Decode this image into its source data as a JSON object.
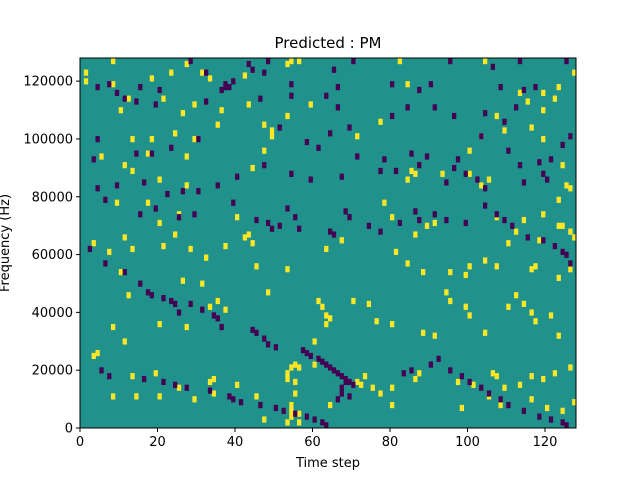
{
  "chart_data": {
    "type": "heatmap",
    "title": "Predicted : PM",
    "xlabel": "Time step",
    "ylabel": "Frequency (Hz)",
    "xlim": [
      0,
      128
    ],
    "ylim": [
      0,
      128000
    ],
    "x_ticks": [
      0,
      20,
      40,
      60,
      80,
      100,
      120
    ],
    "x_tick_labels": [
      "0",
      "20",
      "40",
      "60",
      "80",
      "100",
      "120"
    ],
    "y_ticks": [
      0,
      20000,
      40000,
      60000,
      80000,
      100000,
      120000
    ],
    "y_tick_labels": [
      "0",
      "20000",
      "40000",
      "60000",
      "80000",
      "100000",
      "120000"
    ],
    "grid": false,
    "n_time_steps": 128,
    "n_freq_bins": 128,
    "colors": {
      "background": "#21918c",
      "high": "#fde725",
      "low": "#440154"
    },
    "high_cells": [
      [
        8,
        127
      ],
      [
        1,
        123
      ],
      [
        1,
        120
      ],
      [
        8,
        119
      ],
      [
        18,
        121
      ],
      [
        23,
        123
      ],
      [
        27,
        126
      ],
      [
        31,
        123
      ],
      [
        33,
        121
      ],
      [
        42,
        122
      ],
      [
        53,
        126
      ],
      [
        54,
        127
      ],
      [
        56,
        127
      ],
      [
        82,
        127
      ],
      [
        104,
        127
      ],
      [
        127,
        123
      ],
      [
        12,
        114
      ],
      [
        21,
        114
      ],
      [
        29,
        112
      ],
      [
        43,
        112
      ],
      [
        59,
        112
      ],
      [
        84,
        119
      ],
      [
        113,
        116
      ],
      [
        115,
        113
      ],
      [
        119,
        116
      ],
      [
        123,
        118
      ],
      [
        122,
        114
      ],
      [
        10,
        110
      ],
      [
        26,
        109
      ],
      [
        36,
        110
      ],
      [
        53,
        108
      ],
      [
        107,
        108
      ],
      [
        119,
        110
      ],
      [
        24,
        102
      ],
      [
        35,
        105
      ],
      [
        47,
        105
      ],
      [
        49,
        103
      ],
      [
        49,
        101
      ],
      [
        77,
        106
      ],
      [
        109,
        103
      ],
      [
        116,
        104
      ],
      [
        13,
        100
      ],
      [
        18,
        100
      ],
      [
        29,
        100
      ],
      [
        17,
        95
      ],
      [
        27,
        94
      ],
      [
        47,
        96
      ],
      [
        103,
        101
      ],
      [
        119,
        100
      ],
      [
        100,
        96
      ],
      [
        71,
        101
      ],
      [
        5,
        94
      ],
      [
        11,
        91
      ],
      [
        13,
        89
      ],
      [
        20,
        86
      ],
      [
        27,
        84
      ],
      [
        44,
        90
      ],
      [
        84,
        86
      ],
      [
        86,
        88
      ],
      [
        85,
        89
      ],
      [
        93,
        88
      ],
      [
        100,
        88
      ],
      [
        103,
        84
      ],
      [
        105,
        86
      ],
      [
        124,
        91
      ],
      [
        125,
        84
      ],
      [
        126,
        83
      ],
      [
        123,
        79
      ],
      [
        123,
        70
      ],
      [
        9,
        78
      ],
      [
        17,
        78
      ],
      [
        25,
        74
      ],
      [
        20,
        71
      ],
      [
        13,
        62
      ],
      [
        11,
        66
      ],
      [
        24,
        67
      ],
      [
        40,
        73
      ],
      [
        43,
        67
      ],
      [
        63,
        62
      ],
      [
        67,
        65
      ],
      [
        78,
        78
      ],
      [
        80,
        73
      ],
      [
        89,
        70
      ],
      [
        86,
        67
      ],
      [
        91,
        71
      ],
      [
        107,
        73
      ],
      [
        110,
        64
      ],
      [
        112,
        68
      ],
      [
        114,
        72
      ],
      [
        118,
        65
      ],
      [
        119,
        74
      ],
      [
        124,
        70
      ],
      [
        126,
        68
      ],
      [
        127,
        66
      ],
      [
        3,
        64
      ],
      [
        7,
        61
      ],
      [
        10,
        54
      ],
      [
        21,
        63
      ],
      [
        28,
        62
      ],
      [
        32,
        59
      ],
      [
        37,
        63
      ],
      [
        42,
        66
      ],
      [
        44,
        64
      ],
      [
        45,
        56
      ],
      [
        53,
        55
      ],
      [
        81,
        61
      ],
      [
        84,
        57
      ],
      [
        88,
        54
      ],
      [
        95,
        54
      ],
      [
        99,
        53
      ],
      [
        100,
        56
      ],
      [
        104,
        58
      ],
      [
        107,
        56
      ],
      [
        116,
        55
      ],
      [
        117,
        56
      ],
      [
        126,
        55
      ],
      [
        123,
        52
      ],
      [
        12,
        46
      ],
      [
        26,
        51
      ],
      [
        31,
        50
      ],
      [
        33,
        42
      ],
      [
        35,
        44
      ],
      [
        37,
        41
      ],
      [
        48,
        47
      ],
      [
        61,
        44
      ],
      [
        62,
        42
      ],
      [
        63,
        39
      ],
      [
        63,
        36
      ],
      [
        64,
        38
      ],
      [
        70,
        44
      ],
      [
        74,
        43
      ],
      [
        76,
        37
      ],
      [
        94,
        47
      ],
      [
        95,
        44
      ],
      [
        99,
        42
      ],
      [
        100,
        39
      ],
      [
        110,
        42
      ],
      [
        112,
        46
      ],
      [
        114,
        43
      ],
      [
        116,
        40
      ],
      [
        8,
        35
      ],
      [
        20,
        36
      ],
      [
        27,
        35
      ],
      [
        60,
        30
      ],
      [
        80,
        36
      ],
      [
        88,
        33
      ],
      [
        91,
        32
      ],
      [
        104,
        33
      ],
      [
        117,
        37
      ],
      [
        121,
        39
      ],
      [
        123,
        32
      ],
      [
        3,
        25
      ],
      [
        4,
        26
      ],
      [
        11,
        30
      ],
      [
        60,
        22
      ],
      [
        13,
        18
      ],
      [
        19,
        19
      ],
      [
        25,
        14
      ],
      [
        33,
        16
      ],
      [
        34,
        17
      ],
      [
        40,
        15
      ],
      [
        53,
        17
      ],
      [
        53,
        19
      ],
      [
        54,
        21
      ],
      [
        55,
        22
      ],
      [
        56,
        21
      ],
      [
        71,
        16
      ],
      [
        72,
        15
      ],
      [
        73,
        18
      ],
      [
        75,
        14
      ],
      [
        80,
        14
      ],
      [
        86,
        17
      ],
      [
        87,
        19
      ],
      [
        97,
        16
      ],
      [
        101,
        15
      ],
      [
        106,
        19
      ],
      [
        107,
        18
      ],
      [
        109,
        14
      ],
      [
        113,
        15
      ],
      [
        116,
        18
      ],
      [
        119,
        17
      ],
      [
        122,
        19
      ],
      [
        126,
        21
      ],
      [
        127,
        9
      ],
      [
        8,
        11
      ],
      [
        14,
        11
      ],
      [
        20,
        11
      ],
      [
        29,
        10
      ],
      [
        34,
        12
      ],
      [
        45,
        11
      ],
      [
        53,
        2
      ],
      [
        54,
        4
      ],
      [
        54,
        6
      ],
      [
        54,
        8
      ],
      [
        55,
        12
      ],
      [
        55,
        16
      ],
      [
        47,
        3
      ],
      [
        56,
        2
      ],
      [
        56,
        5
      ],
      [
        64,
        8
      ],
      [
        77,
        12
      ],
      [
        80,
        8
      ],
      [
        98,
        7
      ],
      [
        105,
        11
      ],
      [
        108,
        8
      ],
      [
        116,
        10
      ],
      [
        120,
        7
      ],
      [
        124,
        6
      ]
    ],
    "low_cells": [
      [
        28,
        127
      ],
      [
        32,
        123
      ],
      [
        39,
        120
      ],
      [
        43,
        126
      ],
      [
        44,
        124
      ],
      [
        48,
        127
      ],
      [
        47,
        123
      ],
      [
        65,
        124
      ],
      [
        70,
        127
      ],
      [
        95,
        127
      ],
      [
        106,
        125
      ],
      [
        113,
        127
      ],
      [
        125,
        127
      ],
      [
        4,
        118
      ],
      [
        7,
        119
      ],
      [
        15,
        118
      ],
      [
        20,
        117
      ],
      [
        36,
        117
      ],
      [
        37,
        118
      ],
      [
        37,
        119
      ],
      [
        38,
        118
      ],
      [
        54,
        119
      ],
      [
        66,
        118
      ],
      [
        80,
        119
      ],
      [
        90,
        119
      ],
      [
        87,
        117
      ],
      [
        108,
        118
      ],
      [
        114,
        117
      ],
      [
        117,
        118
      ],
      [
        9,
        116
      ],
      [
        11,
        114
      ],
      [
        14,
        113
      ],
      [
        19,
        112
      ],
      [
        32,
        113
      ],
      [
        46,
        114
      ],
      [
        54,
        115
      ],
      [
        63,
        115
      ],
      [
        66,
        111
      ],
      [
        80,
        108
      ],
      [
        84,
        111
      ],
      [
        91,
        111
      ],
      [
        96,
        108
      ],
      [
        104,
        109
      ],
      [
        109,
        106
      ],
      [
        112,
        111
      ],
      [
        4,
        100
      ],
      [
        14,
        95
      ],
      [
        18,
        95
      ],
      [
        23,
        97
      ],
      [
        30,
        100
      ],
      [
        51,
        104
      ],
      [
        58,
        99
      ],
      [
        61,
        97
      ],
      [
        64,
        102
      ],
      [
        69,
        104
      ],
      [
        71,
        94
      ],
      [
        85,
        95
      ],
      [
        97,
        93
      ],
      [
        103,
        101
      ],
      [
        110,
        96
      ],
      [
        113,
        91
      ],
      [
        118,
        92
      ],
      [
        121,
        93
      ],
      [
        124,
        98
      ],
      [
        126,
        101
      ],
      [
        3,
        93
      ],
      [
        4,
        83
      ],
      [
        9,
        84
      ],
      [
        16,
        85
      ],
      [
        22,
        81
      ],
      [
        26,
        82
      ],
      [
        30,
        82
      ],
      [
        35,
        84
      ],
      [
        40,
        87
      ],
      [
        47,
        91
      ],
      [
        54,
        88
      ],
      [
        59,
        86
      ],
      [
        67,
        87
      ],
      [
        77,
        89
      ],
      [
        78,
        93
      ],
      [
        81,
        89
      ],
      [
        87,
        91
      ],
      [
        89,
        94
      ],
      [
        94,
        85
      ],
      [
        96,
        90
      ],
      [
        99,
        88
      ],
      [
        102,
        86
      ],
      [
        104,
        83
      ],
      [
        114,
        85
      ],
      [
        119,
        88
      ],
      [
        120,
        86
      ],
      [
        6,
        79
      ],
      [
        15,
        74
      ],
      [
        19,
        76
      ],
      [
        25,
        73
      ],
      [
        29,
        74
      ],
      [
        39,
        78
      ],
      [
        45,
        72
      ],
      [
        48,
        71
      ],
      [
        49,
        69
      ],
      [
        51,
        70
      ],
      [
        53,
        76
      ],
      [
        55,
        73
      ],
      [
        56,
        69
      ],
      [
        64,
        68
      ],
      [
        65,
        67
      ],
      [
        68,
        75
      ],
      [
        69,
        73
      ],
      [
        74,
        70
      ],
      [
        77,
        68
      ],
      [
        82,
        71
      ],
      [
        86,
        75
      ],
      [
        87,
        72
      ],
      [
        91,
        74
      ],
      [
        94,
        72
      ],
      [
        99,
        71
      ],
      [
        104,
        77
      ],
      [
        107,
        74
      ],
      [
        109,
        72
      ],
      [
        111,
        70
      ],
      [
        115,
        66
      ],
      [
        119,
        65
      ],
      [
        122,
        63
      ],
      [
        124,
        61
      ],
      [
        125,
        60
      ],
      [
        126,
        57
      ],
      [
        2,
        62
      ],
      [
        6,
        57
      ],
      [
        11,
        54
      ],
      [
        15,
        50
      ],
      [
        17,
        47
      ],
      [
        18,
        46
      ],
      [
        21,
        45
      ],
      [
        23,
        44
      ],
      [
        24,
        43
      ],
      [
        25,
        40
      ],
      [
        28,
        43
      ],
      [
        31,
        41
      ],
      [
        34,
        39
      ],
      [
        35,
        38
      ],
      [
        36,
        35
      ],
      [
        44,
        34
      ],
      [
        45,
        33
      ],
      [
        47,
        31
      ],
      [
        48,
        29
      ],
      [
        50,
        28
      ],
      [
        57,
        27
      ],
      [
        58,
        26
      ],
      [
        59,
        25
      ],
      [
        61,
        24
      ],
      [
        62,
        23
      ],
      [
        63,
        22
      ],
      [
        64,
        21
      ],
      [
        65,
        20
      ],
      [
        66,
        19
      ],
      [
        67,
        18
      ],
      [
        68,
        17
      ],
      [
        69,
        16
      ],
      [
        70,
        15
      ],
      [
        5,
        20
      ],
      [
        7,
        18
      ],
      [
        16,
        17
      ],
      [
        21,
        16
      ],
      [
        24,
        15
      ],
      [
        27,
        14
      ],
      [
        33,
        13
      ],
      [
        38,
        11
      ],
      [
        39,
        10
      ],
      [
        41,
        9
      ],
      [
        46,
        8
      ],
      [
        50,
        7
      ],
      [
        52,
        6
      ],
      [
        55,
        5
      ],
      [
        58,
        4
      ],
      [
        60,
        3
      ],
      [
        62,
        2
      ],
      [
        63,
        1
      ],
      [
        66,
        10
      ],
      [
        67,
        12
      ],
      [
        67,
        14
      ],
      [
        68,
        16
      ],
      [
        69,
        11
      ],
      [
        83,
        19
      ],
      [
        85,
        20
      ],
      [
        90,
        22
      ],
      [
        92,
        24
      ],
      [
        95,
        20
      ],
      [
        98,
        18
      ],
      [
        100,
        16
      ],
      [
        103,
        14
      ],
      [
        105,
        12
      ],
      [
        108,
        10
      ],
      [
        110,
        8
      ],
      [
        114,
        6
      ],
      [
        118,
        4
      ],
      [
        121,
        3
      ],
      [
        124,
        2
      ],
      [
        125,
        1
      ]
    ]
  }
}
